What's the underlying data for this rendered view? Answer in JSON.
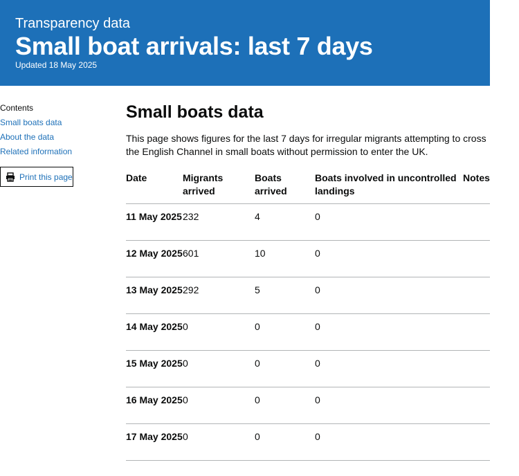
{
  "header": {
    "kicker": "Transparency data",
    "title": "Small boat arrivals: last 7 days",
    "updated": "Updated 18 May 2025"
  },
  "sidebar": {
    "contents_label": "Contents",
    "links": [
      "Small boats data",
      "About the data",
      "Related information"
    ],
    "print_label": "Print this page"
  },
  "main": {
    "heading": "Small boats data",
    "intro": "This page shows figures for the last 7 days for irregular migrants attempting to cross the English Channel in small boats without permission to enter the UK.",
    "table": {
      "headers": [
        "Date",
        "Migrants arrived",
        "Boats arrived",
        "Boats involved in uncontrolled landings",
        "Notes"
      ],
      "rows": [
        {
          "date": "11 May 2025",
          "migrants": "232",
          "boats": "4",
          "uncontrolled": "0",
          "notes": ""
        },
        {
          "date": "12 May 2025",
          "migrants": "601",
          "boats": "10",
          "uncontrolled": "0",
          "notes": ""
        },
        {
          "date": "13 May 2025",
          "migrants": "292",
          "boats": "5",
          "uncontrolled": "0",
          "notes": ""
        },
        {
          "date": "14 May 2025",
          "migrants": "0",
          "boats": "0",
          "uncontrolled": "0",
          "notes": ""
        },
        {
          "date": "15 May 2025",
          "migrants": "0",
          "boats": "0",
          "uncontrolled": "0",
          "notes": ""
        },
        {
          "date": "16 May 2025",
          "migrants": "0",
          "boats": "0",
          "uncontrolled": "0",
          "notes": ""
        },
        {
          "date": "17 May 2025",
          "migrants": "0",
          "boats": "0",
          "uncontrolled": "0",
          "notes": ""
        }
      ]
    }
  },
  "colors": {
    "banner": "#1d70b8",
    "link": "#1d70b8",
    "text": "#0b0c0c",
    "divider": "#b1b4b6"
  },
  "icons": {
    "print": "printer-icon"
  }
}
